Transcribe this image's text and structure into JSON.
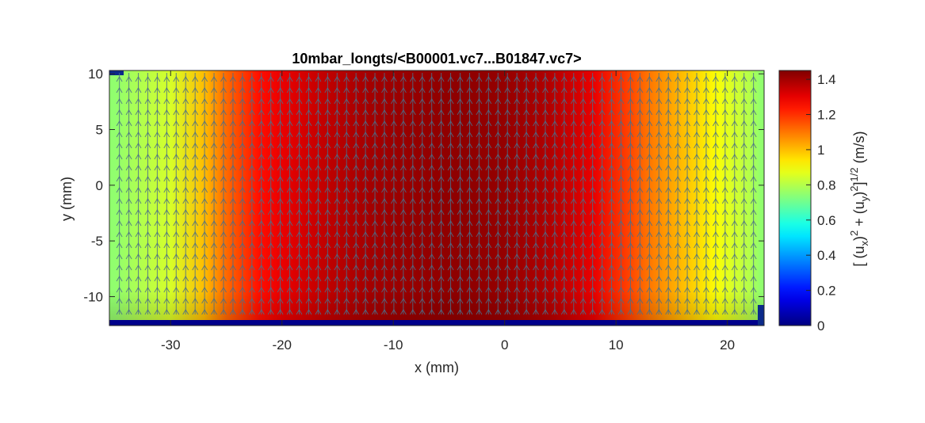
{
  "chart_data": {
    "type": "heatmap",
    "title": "10mbar_longts/<B00001.vc7...B01847.vc7>",
    "xlabel": "x (mm)",
    "ylabel": "y (mm)",
    "xlim": [
      -35.5,
      23.3
    ],
    "ylim": [
      -12.6,
      10.3
    ],
    "xticks": [
      -30,
      -20,
      -10,
      0,
      10,
      20
    ],
    "yticks": [
      -10,
      -5,
      0,
      5,
      10
    ],
    "colorbar": {
      "label_parts": [
        "[ (u",
        "x",
        ")",
        "2",
        " + (u",
        "y",
        ")",
        "2",
        "]",
        "1/2",
        " (m/s)"
      ],
      "range": [
        0,
        1.45
      ],
      "ticks": [
        0,
        0.2,
        0.4,
        0.6,
        0.8,
        1,
        1.2,
        1.4
      ],
      "colormap": "jet"
    },
    "velocity_magnitude_profile": {
      "x": [
        -35,
        -30,
        -27,
        -25,
        -22,
        -20,
        -16,
        -12,
        -8,
        -4,
        0,
        4,
        8,
        11,
        13,
        16,
        19,
        22,
        23
      ],
      "values": [
        0.75,
        0.85,
        1.0,
        1.12,
        1.25,
        1.3,
        1.36,
        1.4,
        1.42,
        1.43,
        1.42,
        1.38,
        1.3,
        1.18,
        1.1,
        1.0,
        0.9,
        0.8,
        0.75
      ]
    },
    "vectors": {
      "direction": "+y",
      "x_spacing_mm": 0.85,
      "color": "#4a6f8a"
    }
  }
}
